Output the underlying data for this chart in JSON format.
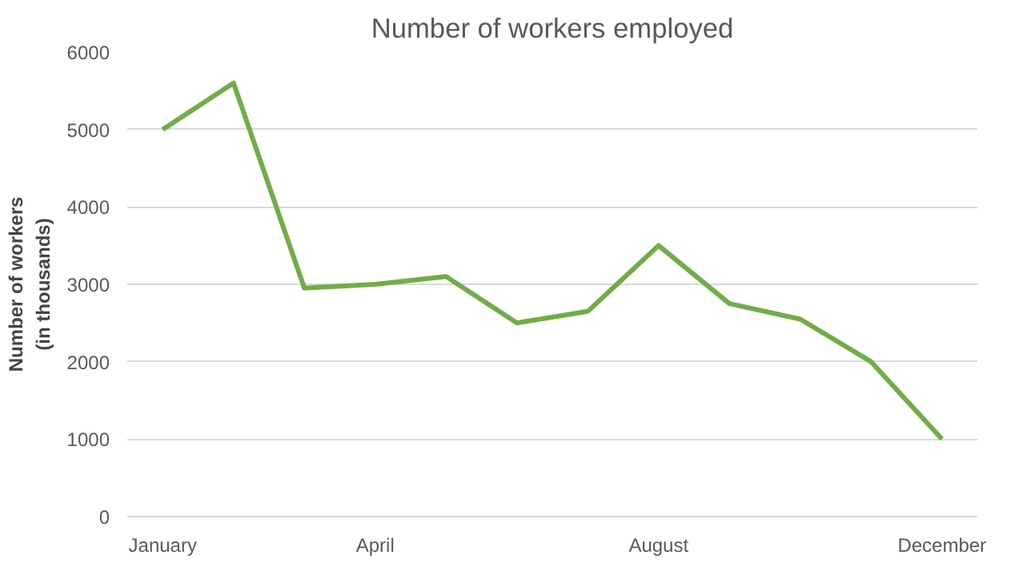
{
  "chart_data": {
    "type": "line",
    "title": "Number of workers employed",
    "ylabel": "Number of workers\n(in thousands)",
    "categories": [
      "January",
      null,
      null,
      "April",
      null,
      null,
      null,
      "August",
      null,
      null,
      null,
      "December"
    ],
    "series": [
      {
        "color": "#70ad47",
        "values": [
          5000,
          5600,
          2950,
          3000,
          3100,
          2500,
          2650,
          3500,
          2750,
          2550,
          2000,
          1000
        ]
      }
    ],
    "ylim": [
      0,
      6000
    ],
    "yticks": [
      0,
      1000,
      2000,
      3000,
      4000,
      5000,
      6000
    ],
    "grid": "y",
    "marker": "none",
    "line_style": "solid"
  }
}
